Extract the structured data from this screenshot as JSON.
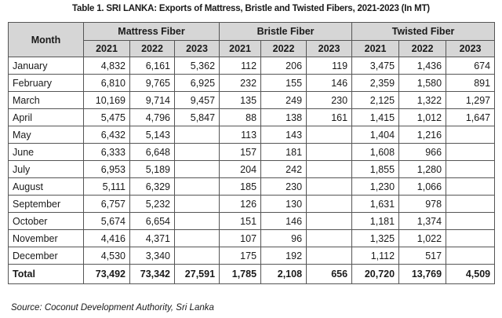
{
  "title": "Table 1. SRI LANKA: Exports of Mattress, Bristle and Twisted Fibers, 2021-2023  (In MT)",
  "header": {
    "month": "Month",
    "groups": [
      "Mattress Fiber",
      "Bristle Fiber",
      "Twisted Fiber"
    ],
    "years": [
      "2021",
      "2022",
      "2023",
      "2021",
      "2022",
      "2023",
      "2021",
      "2022",
      "2023"
    ]
  },
  "rows": [
    {
      "month": "January",
      "values": [
        "4,832",
        "6,161",
        "5,362",
        "112",
        "206",
        "119",
        "3,475",
        "1,436",
        "674"
      ]
    },
    {
      "month": "February",
      "values": [
        "6,810",
        "9,765",
        "6,925",
        "232",
        "155",
        "146",
        "2,359",
        "1,580",
        "891"
      ]
    },
    {
      "month": "March",
      "values": [
        "10,169",
        "9,714",
        "9,457",
        "135",
        "249",
        "230",
        "2,125",
        "1,322",
        "1,297"
      ]
    },
    {
      "month": "April",
      "values": [
        "5,475",
        "4,796",
        "5,847",
        "88",
        "138",
        "161",
        "1,415",
        "1,012",
        "1,647"
      ]
    },
    {
      "month": "May",
      "values": [
        "6,432",
        "5,143",
        "",
        "113",
        "143",
        "",
        "1,404",
        "1,216",
        ""
      ]
    },
    {
      "month": "June",
      "values": [
        "6,333",
        "6,648",
        "",
        "157",
        "181",
        "",
        "1,608",
        "966",
        ""
      ]
    },
    {
      "month": "July",
      "values": [
        "6,953",
        "5,189",
        "",
        "204",
        "242",
        "",
        "1,855",
        "1,280",
        ""
      ]
    },
    {
      "month": "August",
      "values": [
        "5,111",
        "6,329",
        "",
        "185",
        "230",
        "",
        "1,230",
        "1,066",
        ""
      ]
    },
    {
      "month": "September",
      "values": [
        "6,757",
        "5,232",
        "",
        "126",
        "130",
        "",
        "1,631",
        "978",
        ""
      ]
    },
    {
      "month": "October",
      "values": [
        "5,674",
        "6,654",
        "",
        "151",
        "146",
        "",
        "1,181",
        "1,374",
        ""
      ]
    },
    {
      "month": "November",
      "values": [
        "4,416",
        "4,371",
        "",
        "107",
        "96",
        "",
        "1,325",
        "1,022",
        ""
      ]
    },
    {
      "month": "December",
      "values": [
        "4,530",
        "3,340",
        "",
        "175",
        "192",
        "",
        "1,112",
        "517",
        ""
      ]
    }
  ],
  "total": {
    "label": "Total",
    "values": [
      "73,492",
      "73,342",
      "27,591",
      "1,785",
      "2,108",
      "656",
      "20,720",
      "13,769",
      "4,509"
    ]
  },
  "source": "Source: Coconut Development Authority, Sri Lanka",
  "colors": {
    "header_bg": "#d6d6d6",
    "border": "#555555"
  }
}
